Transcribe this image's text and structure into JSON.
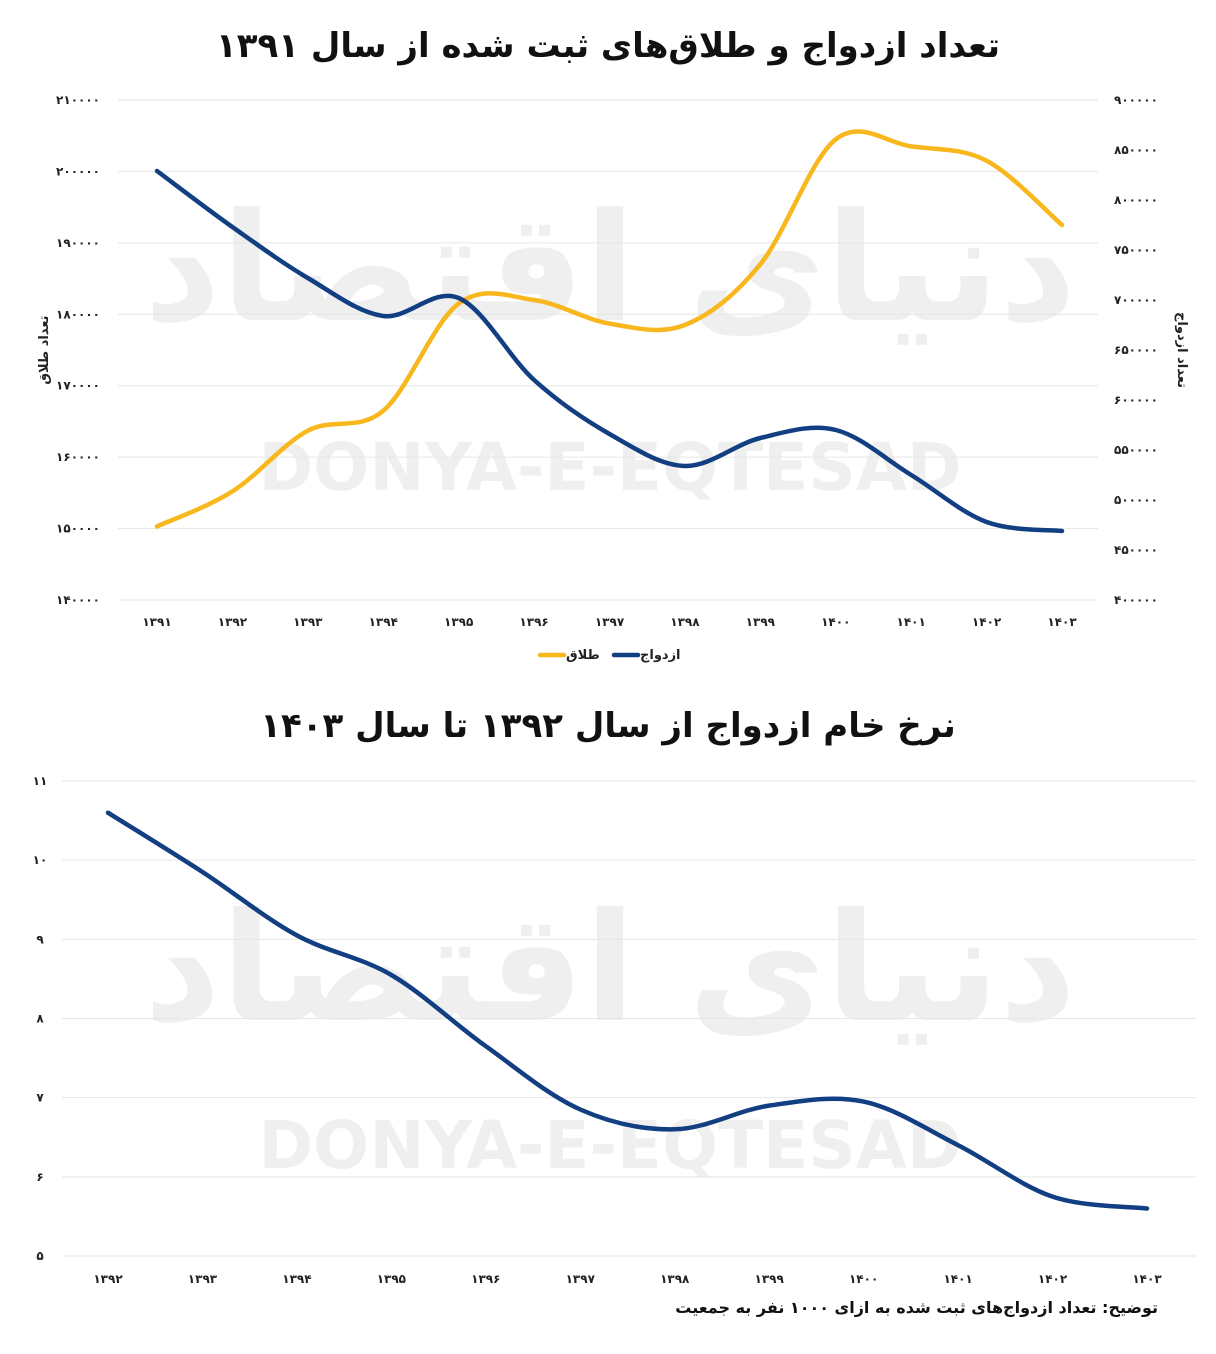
{
  "watermark": {
    "latin": "DONYA-E-EQTESAD",
    "persian": "دنیای اقتصاد"
  },
  "note": "توضیح: تعداد ازدواج‌های ثبت شده به ازای ۱۰۰۰ نفر به جمعیت",
  "chart_data": [
    {
      "type": "line",
      "title": "تعداد ازدواج و طلاق‌های ثبت شده از سال ۱۳۹۱",
      "categories": [
        "۱۳۹۱",
        "۱۳۹۲",
        "۱۳۹۳",
        "۱۳۹۴",
        "۱۳۹۵",
        "۱۳۹۶",
        "۱۳۹۷",
        "۱۳۹۸",
        "۱۳۹۹",
        "۱۴۰۰",
        "۱۴۰۱",
        "۱۴۰۲",
        "۱۴۰۳"
      ],
      "ylabel_left": "تعداد طلاق",
      "ylabel_right": "تعداد ازدواج",
      "ylim_left": [
        140000,
        210000
      ],
      "ylim_right": [
        400000,
        900000
      ],
      "yticks_left": [
        "۲۱۰۰۰۰",
        "۲۰۰۰۰۰",
        "۱۹۰۰۰۰",
        "۱۸۰۰۰۰",
        "۱۷۰۰۰۰",
        "۱۶۰۰۰۰",
        "۱۵۰۰۰۰",
        "۱۴۰۰۰۰"
      ],
      "yticks_right": [
        "۹۰۰۰۰۰",
        "۸۵۰۰۰۰",
        "۸۰۰۰۰۰",
        "۷۵۰۰۰۰",
        "۷۰۰۰۰۰",
        "۶۵۰۰۰۰",
        "۶۰۰۰۰۰",
        "۵۵۰۰۰۰",
        "۵۰۰۰۰۰",
        "۴۵۰۰۰۰",
        "۴۰۰۰۰۰"
      ],
      "grid": true,
      "legend_position": "bottom",
      "series": [
        {
          "name": "طلاق",
          "axis": "left",
          "color": "#F8B71C",
          "values": [
            150300,
            155200,
            163700,
            166500,
            181500,
            182000,
            178700,
            178500,
            187000,
            204500,
            203500,
            201500,
            192500
          ]
        },
        {
          "name": "ازدواج",
          "axis": "right",
          "color": "#123E82",
          "values": [
            829000,
            773000,
            722000,
            684000,
            702000,
            620000,
            566000,
            534000,
            562000,
            570000,
            525000,
            478000,
            469000
          ]
        }
      ]
    },
    {
      "type": "line",
      "title": "نرخ خام ازدواج از سال ۱۳۹۲ تا سال ۱۴۰۳",
      "categories": [
        "۱۳۹۲",
        "۱۳۹۳",
        "۱۳۹۴",
        "۱۳۹۵",
        "۱۳۹۶",
        "۱۳۹۷",
        "۱۳۹۸",
        "۱۳۹۹",
        "۱۴۰۰",
        "۱۴۰۱",
        "۱۴۰۲",
        "۱۴۰۳"
      ],
      "ylim": [
        5,
        11
      ],
      "yticks": [
        "۱۱",
        "۱۰",
        "۹",
        "۸",
        "۷",
        "۶",
        "۵"
      ],
      "grid": true,
      "series": [
        {
          "color": "#123E82",
          "values": [
            10.6,
            9.85,
            9.05,
            8.55,
            7.65,
            6.85,
            6.6,
            6.9,
            6.95,
            6.4,
            5.75,
            5.6
          ]
        }
      ]
    }
  ]
}
